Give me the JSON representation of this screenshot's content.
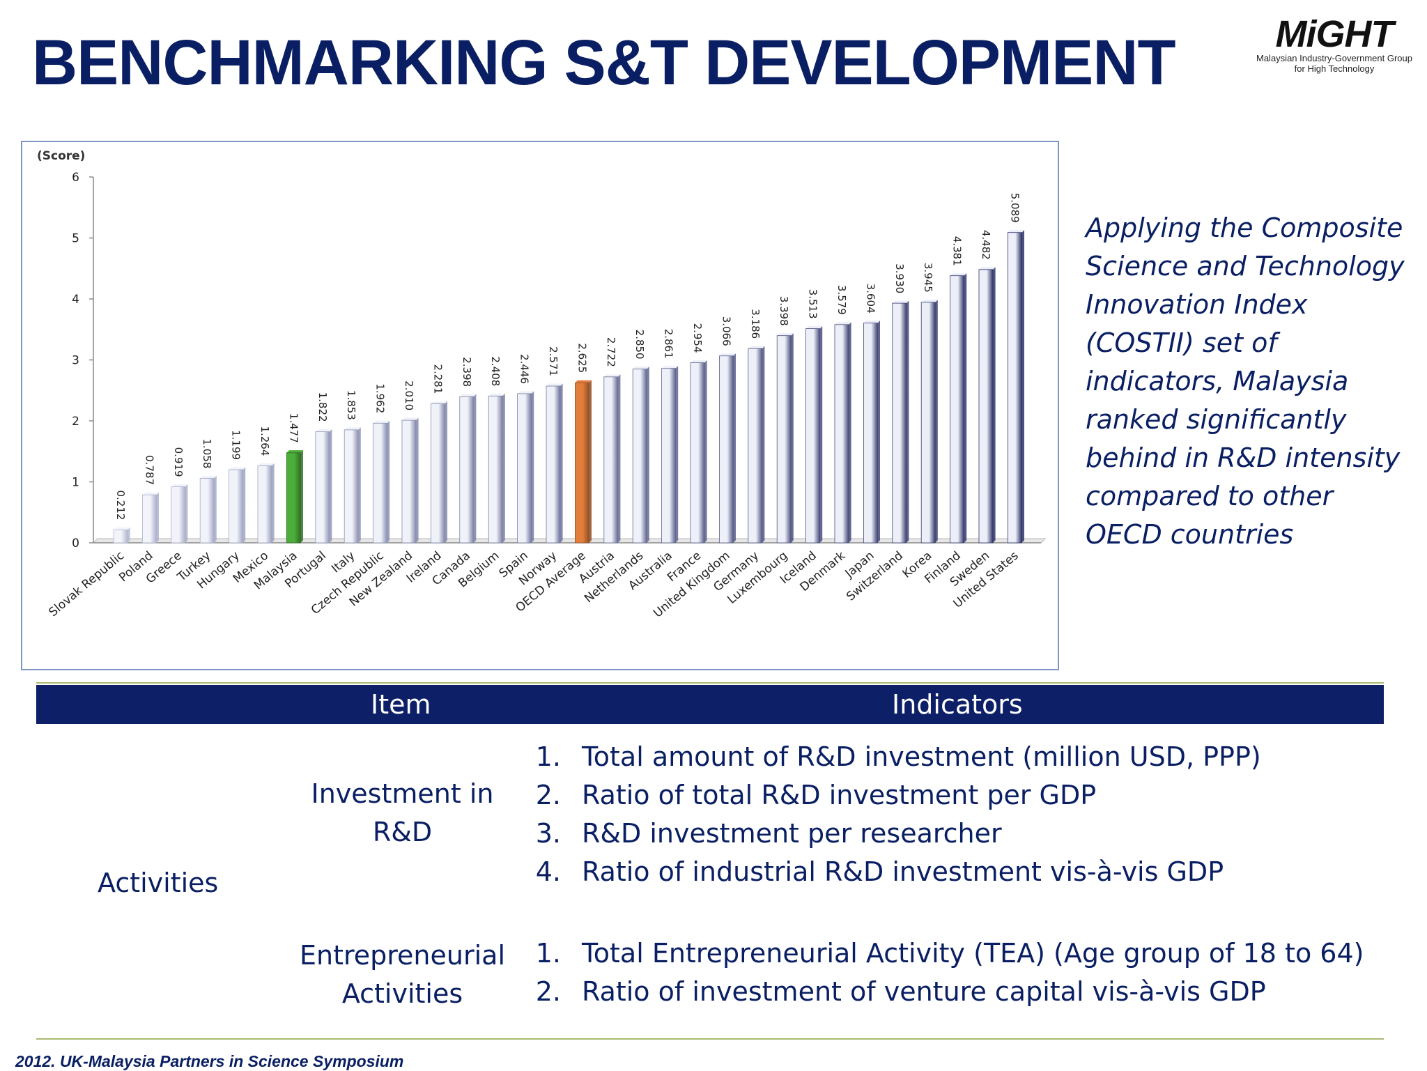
{
  "slide": {
    "title": "BENCHMARKING S&T DEVELOPMENT",
    "logo": {
      "mark": "MiGHT",
      "subtitle_line1": "Malaysian Industry-Government Group",
      "subtitle_line2": "for High Technology"
    },
    "side_text": "Applying the Composite Science and Technology Innovation Index (COSTII) set of indicators, Malaysia ranked significantly behind in R&D intensity compared to other OECD countries",
    "footer": "2012. UK-Malaysia Partners in Science Symposium"
  },
  "table": {
    "headers": {
      "item": "Item",
      "indicators": "Indicators"
    },
    "category": "Activities",
    "groups": [
      {
        "item": "Investment in R&D",
        "indicators": [
          {
            "num": "1.",
            "text": "Total amount of R&D investment (million USD, PPP)"
          },
          {
            "num": "2.",
            "text": "Ratio of total R&D investment per GDP"
          },
          {
            "num": "3.",
            "text": "R&D investment per researcher"
          },
          {
            "num": "4.",
            "text": "Ratio of industrial R&D investment vis-à-vis GDP"
          }
        ]
      },
      {
        "item": "Entrepreneurial Activities",
        "indicators": [
          {
            "num": "1.",
            "text": "Total Entrepreneurial Activity (TEA) (Age group of 18 to 64)"
          },
          {
            "num": "2.",
            "text": "Ratio of investment of venture capital vis-à-vis GDP"
          }
        ]
      }
    ]
  },
  "chart_data": {
    "type": "bar",
    "ylabel": "(Score)",
    "xlabel": "",
    "ylim": [
      0,
      6
    ],
    "yticks": [
      0,
      1,
      2,
      3,
      4,
      5,
      6
    ],
    "grid": false,
    "categories": [
      "Slovak Republic",
      "Poland",
      "Greece",
      "Turkey",
      "Hungary",
      "Mexico",
      "Malaysia",
      "Portugal",
      "Italy",
      "Czech Republic",
      "New Zealand",
      "Ireland",
      "Canada",
      "Belgium",
      "Spain",
      "Norway",
      "OECD Average",
      "Austria",
      "Netherlands",
      "Australia",
      "France",
      "United Kingdom",
      "Germany",
      "Luxembourg",
      "Iceland",
      "Denmark",
      "Japan",
      "Switzerland",
      "Korea",
      "Finland",
      "Sweden",
      "United States"
    ],
    "values": [
      0.212,
      0.787,
      0.919,
      1.058,
      1.199,
      1.264,
      1.477,
      1.822,
      1.853,
      1.962,
      2.01,
      2.281,
      2.398,
      2.408,
      2.446,
      2.571,
      2.625,
      2.722,
      2.85,
      2.861,
      2.954,
      3.066,
      3.186,
      3.398,
      3.513,
      3.579,
      3.604,
      3.93,
      3.945,
      4.381,
      4.482,
      5.089
    ],
    "data_labels": [
      "0.212",
      "0.787",
      "0.919",
      "1.058",
      "1.199",
      "1.264",
      "1.477",
      "1.822",
      "1.853",
      "1.962",
      "2.010",
      "2.281",
      "2.398",
      "2.408",
      "2.446",
      "2.571",
      "2.625",
      "2.722",
      "2.850",
      "2.861",
      "2.954",
      "3.066",
      "3.186",
      "3.398",
      "3.513",
      "3.579",
      "3.604",
      "3.930",
      "3.945",
      "4.381",
      "4.482",
      "5.089"
    ],
    "highlights": {
      "Malaysia": "#3c8a2e",
      "OECD Average": "#b5642f"
    },
    "colors": {
      "gradient_low": "#dfe3f3",
      "gradient_high": "#2c3166"
    }
  }
}
